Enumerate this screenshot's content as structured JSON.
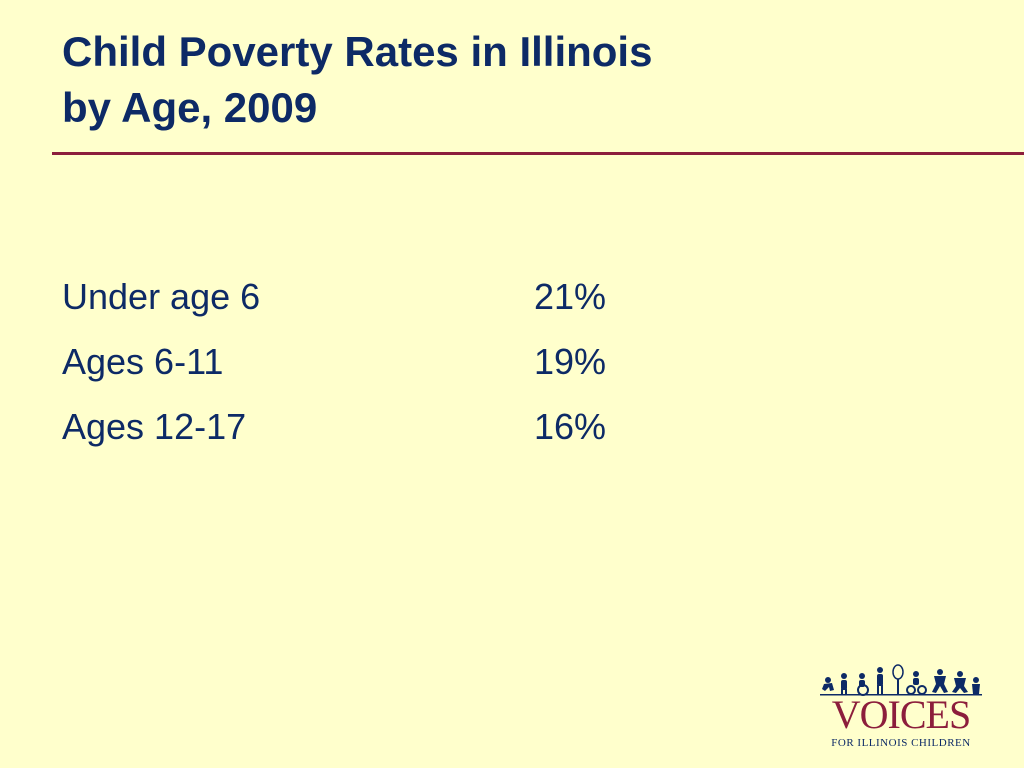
{
  "slide": {
    "title_line1": "Child Poverty Rates in Illinois",
    "title_line2": "by Age, 2009"
  },
  "rows": [
    {
      "label": "Under age 6",
      "value": "21%"
    },
    {
      "label": "Ages 6-11",
      "value": "19%"
    },
    {
      "label": "Ages 12-17",
      "value": "16%"
    }
  ],
  "logo": {
    "word": "VOICES",
    "tagline": "FOR ILLINOIS CHILDREN",
    "icon": "children-silhouettes-icon"
  },
  "colors": {
    "background": "#ffffcc",
    "text": "#0d2a66",
    "rule": "#8c1e3c",
    "logo_word": "#8c1e3c"
  }
}
